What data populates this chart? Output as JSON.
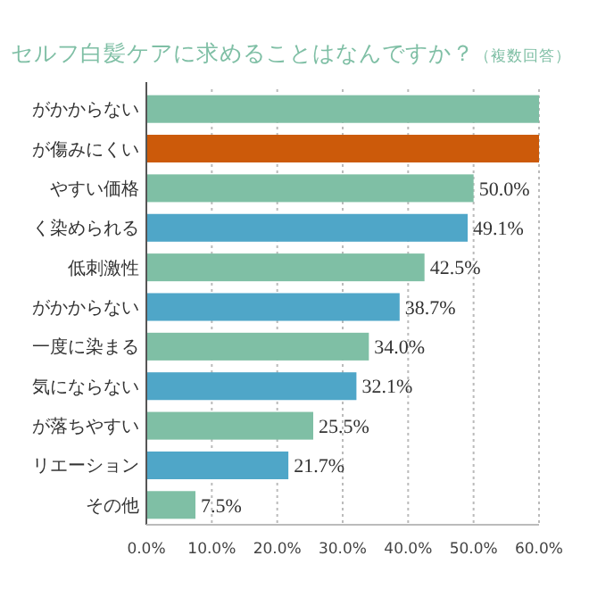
{
  "chart_data": {
    "type": "bar",
    "orientation": "horizontal",
    "title": "セルフ白髪ケアに求めることはなんですか？",
    "subtitle": "（複数回答）",
    "categories": [
      "がかからない",
      "が傷みにくい",
      "やすい価格",
      "く染められる",
      "低刺激性",
      "がかからない",
      "一度に染まる",
      "気にならない",
      "が落ちやすい",
      "リエーション",
      "その他"
    ],
    "values": [
      60,
      60,
      50.0,
      49.1,
      42.5,
      38.7,
      34.0,
      32.1,
      25.5,
      21.7,
      7.5
    ],
    "value_labels": [
      null,
      null,
      "50.0%",
      "49.1%",
      "42.5%",
      "38.7%",
      "34.0%",
      "32.1%",
      "25.5%",
      "21.7%",
      "7.5%"
    ],
    "colors": [
      "#7fbfa5",
      "#cc5a0a",
      "#7fbfa5",
      "#4fa6c8",
      "#7fbfa5",
      "#4fa6c8",
      "#7fbfa5",
      "#4fa6c8",
      "#7fbfa5",
      "#4fa6c8",
      "#7fbfa5"
    ],
    "xlim": [
      0,
      60
    ],
    "xticks": [
      {
        "value": 0,
        "label": "0.0%"
      },
      {
        "value": 10,
        "label": "10.0%"
      },
      {
        "value": 20,
        "label": "20.0%"
      },
      {
        "value": 30,
        "label": "30.0%"
      },
      {
        "value": 40,
        "label": "40.0%"
      },
      {
        "value": 50,
        "label": "50.0%"
      },
      {
        "value": 60,
        "label": "60.0%"
      }
    ],
    "grid": "x"
  }
}
